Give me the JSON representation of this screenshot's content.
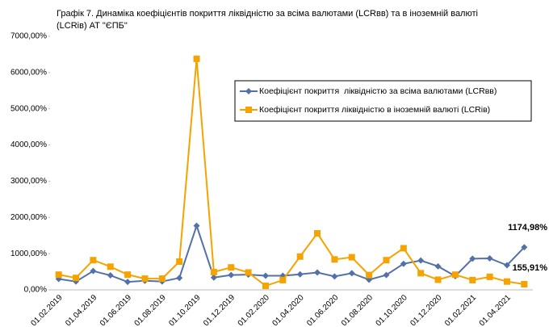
{
  "chart_data": {
    "type": "line",
    "title": "Графік 7. Динаміка коефіцієнтів покриття ліквідністю за всіма валютами (LCRвв) та в іноземній валюті (LCRів) АТ \"ЄПБ\"",
    "categories": [
      "01.02.2019",
      null,
      "01.04.2019",
      null,
      "01.06.2019",
      null,
      "01.08.2019",
      null,
      "01.10.2019",
      null,
      "01.12.2019",
      null,
      "01.02.2020",
      null,
      "01.04.2020",
      null,
      "01.06.2020",
      null,
      "01.08.2020",
      null,
      "01.10.2020",
      null,
      "01.12.2020",
      null,
      "01.02.2021",
      null,
      "01.04.2021",
      null
    ],
    "series": [
      {
        "name": "Коефіцієнт покриття  ліквідністю за всіма валютами (LCRвв)",
        "color": "#5470a8",
        "marker": "diamond",
        "values": [
          300,
          230,
          520,
          400,
          220,
          250,
          230,
          330,
          1770,
          340,
          410,
          420,
          390,
          390,
          430,
          480,
          370,
          460,
          280,
          410,
          720,
          810,
          650,
          380,
          860,
          870,
          680,
          1174.98
        ],
        "value_labels": [
          null,
          null,
          null,
          null,
          null,
          null,
          null,
          null,
          null,
          null,
          null,
          null,
          null,
          null,
          null,
          null,
          null,
          null,
          null,
          null,
          null,
          null,
          null,
          null,
          null,
          null,
          null,
          "1174,98%"
        ]
      },
      {
        "name": "Коефіцієнт покриття ліквідністю в іноземній валюті (LCRів)",
        "color": "#f5a300",
        "marker": "square",
        "values": [
          420,
          330,
          820,
          640,
          420,
          310,
          310,
          780,
          6380,
          490,
          620,
          480,
          110,
          270,
          920,
          1560,
          840,
          900,
          410,
          820,
          1150,
          460,
          280,
          420,
          270,
          360,
          230,
          155.91
        ],
        "value_labels": [
          null,
          null,
          null,
          null,
          null,
          null,
          null,
          null,
          null,
          null,
          null,
          null,
          null,
          null,
          null,
          null,
          null,
          null,
          null,
          null,
          null,
          null,
          null,
          null,
          null,
          null,
          null,
          "155,91%"
        ]
      }
    ],
    "ylim": [
      0,
      7000
    ],
    "yticks": [
      {
        "value": 0,
        "label": "0,00%"
      },
      {
        "value": 1000,
        "label": "1000,00%"
      },
      {
        "value": 2000,
        "label": "2000,00%"
      },
      {
        "value": 3000,
        "label": "3000,00%"
      },
      {
        "value": 4000,
        "label": "4000,00%"
      },
      {
        "value": 5000,
        "label": "5000,00%"
      },
      {
        "value": 6000,
        "label": "6000,00%"
      },
      {
        "value": 7000,
        "label": "7000,00%"
      }
    ],
    "grid": false,
    "legend": "upper right"
  }
}
